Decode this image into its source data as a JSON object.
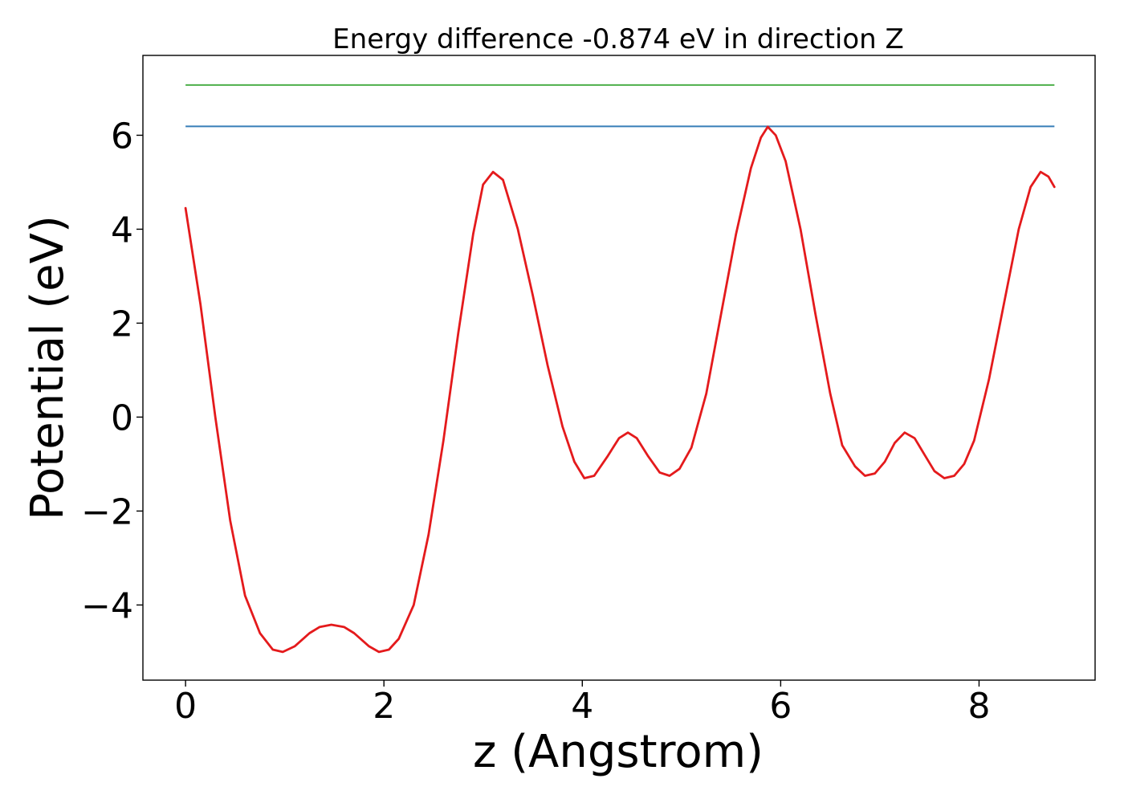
{
  "chart_data": {
    "type": "line",
    "title": "Energy difference -0.874 eV in direction Z",
    "xlabel": "z (Angstrom)",
    "ylabel": "Potential (eV)",
    "xlim": [
      -0.43,
      9.17
    ],
    "ylim": [
      -5.6,
      7.7
    ],
    "xticks": [
      0,
      2,
      4,
      6,
      8
    ],
    "xtick_labels": [
      "0",
      "2",
      "4",
      "6",
      "8"
    ],
    "yticks": [
      -4,
      -2,
      0,
      2,
      4,
      6
    ],
    "ytick_labels": [
      "−4",
      "−2",
      "0",
      "2",
      "4",
      "6"
    ],
    "grid": false,
    "legend": "none",
    "series": [
      {
        "color": "#e41a1c",
        "points": [
          [
            0.0,
            4.45
          ],
          [
            0.15,
            2.4
          ],
          [
            0.3,
            0.0
          ],
          [
            0.45,
            -2.2
          ],
          [
            0.6,
            -3.8
          ],
          [
            0.75,
            -4.6
          ],
          [
            0.88,
            -4.95
          ],
          [
            0.98,
            -5.0
          ],
          [
            1.1,
            -4.88
          ],
          [
            1.25,
            -4.6
          ],
          [
            1.35,
            -4.47
          ],
          [
            1.47,
            -4.42
          ],
          [
            1.6,
            -4.47
          ],
          [
            1.7,
            -4.6
          ],
          [
            1.85,
            -4.88
          ],
          [
            1.95,
            -5.0
          ],
          [
            2.05,
            -4.95
          ],
          [
            2.15,
            -4.72
          ],
          [
            2.3,
            -4.0
          ],
          [
            2.45,
            -2.5
          ],
          [
            2.6,
            -0.5
          ],
          [
            2.75,
            1.8
          ],
          [
            2.9,
            3.9
          ],
          [
            3.0,
            4.95
          ],
          [
            3.1,
            5.22
          ],
          [
            3.2,
            5.05
          ],
          [
            3.35,
            4.0
          ],
          [
            3.5,
            2.6
          ],
          [
            3.65,
            1.1
          ],
          [
            3.8,
            -0.2
          ],
          [
            3.92,
            -0.95
          ],
          [
            4.02,
            -1.3
          ],
          [
            4.12,
            -1.25
          ],
          [
            4.25,
            -0.85
          ],
          [
            4.37,
            -0.45
          ],
          [
            4.46,
            -0.33
          ],
          [
            4.55,
            -0.45
          ],
          [
            4.66,
            -0.82
          ],
          [
            4.78,
            -1.18
          ],
          [
            4.88,
            -1.25
          ],
          [
            4.98,
            -1.1
          ],
          [
            5.1,
            -0.65
          ],
          [
            5.25,
            0.5
          ],
          [
            5.4,
            2.2
          ],
          [
            5.55,
            3.9
          ],
          [
            5.7,
            5.3
          ],
          [
            5.8,
            5.95
          ],
          [
            5.87,
            6.18
          ],
          [
            5.95,
            6.0
          ],
          [
            6.05,
            5.45
          ],
          [
            6.2,
            4.0
          ],
          [
            6.35,
            2.2
          ],
          [
            6.5,
            0.5
          ],
          [
            6.62,
            -0.6
          ],
          [
            6.75,
            -1.05
          ],
          [
            6.85,
            -1.25
          ],
          [
            6.95,
            -1.2
          ],
          [
            7.05,
            -0.95
          ],
          [
            7.15,
            -0.55
          ],
          [
            7.25,
            -0.33
          ],
          [
            7.35,
            -0.45
          ],
          [
            7.45,
            -0.8
          ],
          [
            7.55,
            -1.15
          ],
          [
            7.65,
            -1.3
          ],
          [
            7.75,
            -1.25
          ],
          [
            7.85,
            -1.0
          ],
          [
            7.95,
            -0.5
          ],
          [
            8.1,
            0.8
          ],
          [
            8.25,
            2.4
          ],
          [
            8.4,
            4.0
          ],
          [
            8.52,
            4.9
          ],
          [
            8.62,
            5.22
          ],
          [
            8.7,
            5.12
          ],
          [
            8.76,
            4.9
          ]
        ]
      }
    ],
    "hlines": [
      {
        "y": 7.07,
        "xmin": 0.0,
        "xmax": 8.76,
        "color": "#4daf4a"
      },
      {
        "y": 6.19,
        "xmin": 0.0,
        "xmax": 8.76,
        "color": "#377eb8"
      }
    ]
  }
}
